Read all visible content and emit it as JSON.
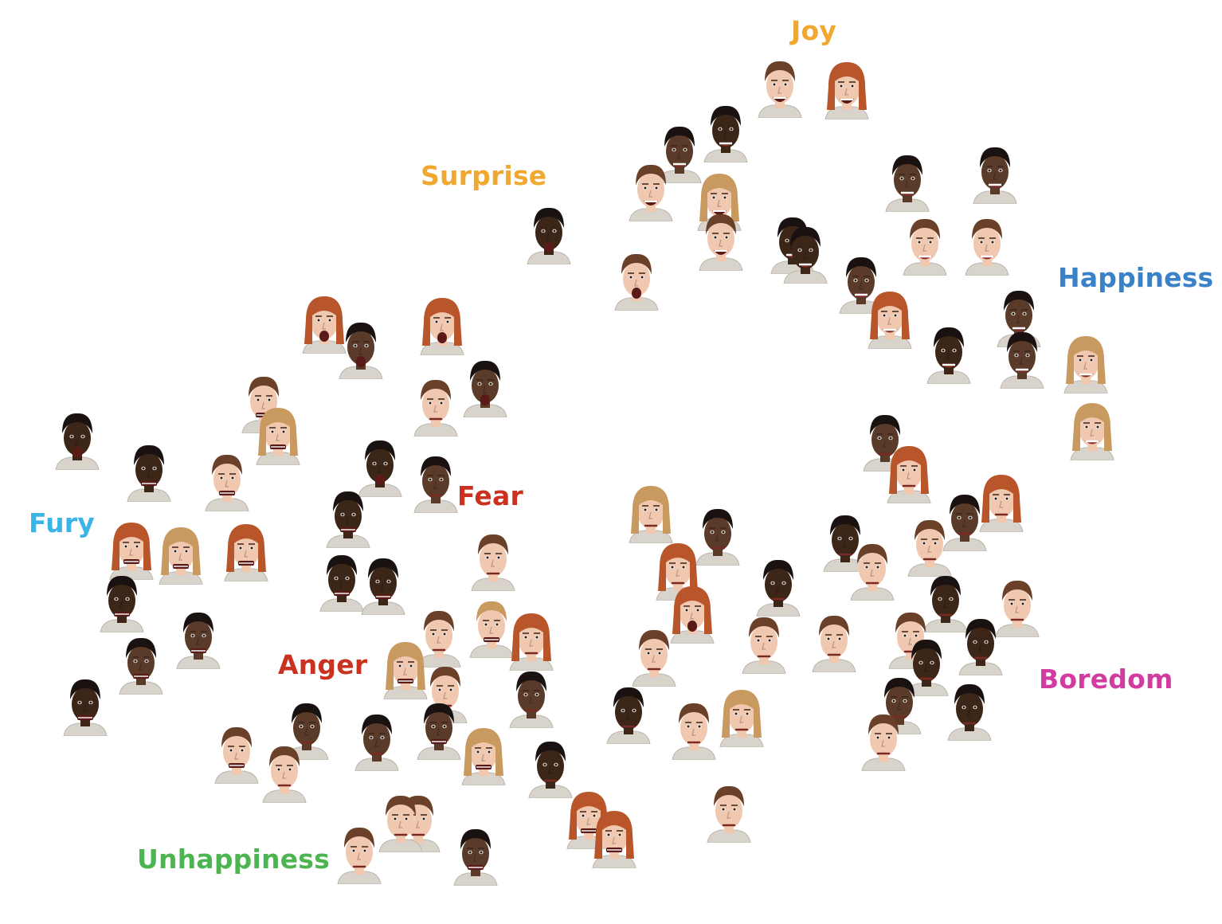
{
  "labels": {
    "joy": "Joy",
    "surprise": "Surprise",
    "happiness": "Happiness",
    "fear": "Fear",
    "fury": "Fury",
    "anger": "Anger",
    "boredom": "Boredom",
    "unhappiness": "Unhappiness"
  },
  "colors": {
    "joy": "#f0a830",
    "surprise": "#f0a830",
    "happiness": "#3a82c8",
    "fear": "#c8321e",
    "fury": "#3cb4e6",
    "anger": "#c8321e",
    "boredom": "#d23ca0",
    "unhappiness": "#4cb450"
  }
}
